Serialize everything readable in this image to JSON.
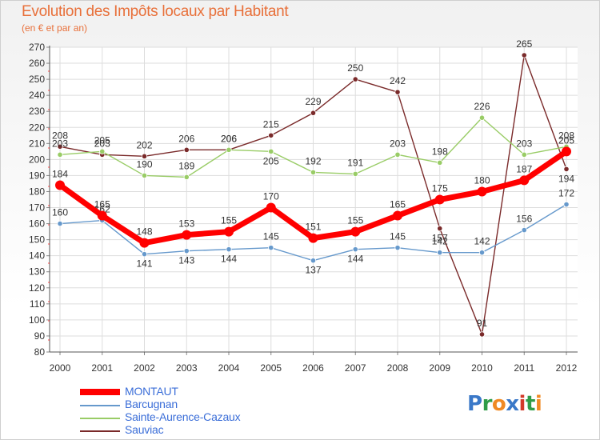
{
  "chart_data": {
    "type": "line",
    "title": "Evolution des Impôts locaux par Habitant",
    "subtitle": "(en € et par an)",
    "xlabel": "",
    "ylabel": "",
    "categories": [
      "2000",
      "2001",
      "2002",
      "2003",
      "2004",
      "2005",
      "2006",
      "2007",
      "2008",
      "2009",
      "2010",
      "2011",
      "2012"
    ],
    "ylim": [
      80,
      270
    ],
    "yticks": [
      80,
      90,
      100,
      110,
      120,
      130,
      140,
      150,
      160,
      170,
      180,
      190,
      200,
      210,
      220,
      230,
      240,
      250,
      260,
      270
    ],
    "series": [
      {
        "name": "MONTAUT",
        "color": "#ff0000",
        "values": [
          184,
          165,
          148,
          153,
          155,
          170,
          151,
          155,
          165,
          175,
          180,
          187,
          205
        ]
      },
      {
        "name": "Barcugnan",
        "color": "#6699cc",
        "values": [
          160,
          162,
          141,
          143,
          144,
          145,
          137,
          144,
          145,
          142,
          142,
          156,
          172
        ]
      },
      {
        "name": "Sainte-Aurence-Cazaux",
        "color": "#99cc66",
        "values": [
          203,
          205,
          190,
          189,
          206,
          205,
          192,
          191,
          203,
          198,
          226,
          203,
          208
        ]
      },
      {
        "name": "Sauviac",
        "color": "#7a2a2a",
        "values": [
          208,
          203,
          202,
          206,
          206,
          215,
          229,
          250,
          242,
          157,
          91,
          265,
          194
        ]
      }
    ]
  },
  "logo": {
    "text": "Proxiti",
    "letters": [
      "P",
      "r",
      "o",
      "x",
      "i",
      "t",
      "i"
    ],
    "colors": [
      "#3a78c8",
      "#2f9c47",
      "#f08a24",
      "#3a78c8",
      "#d23a2a",
      "#2f9c47",
      "#f08a24"
    ]
  }
}
